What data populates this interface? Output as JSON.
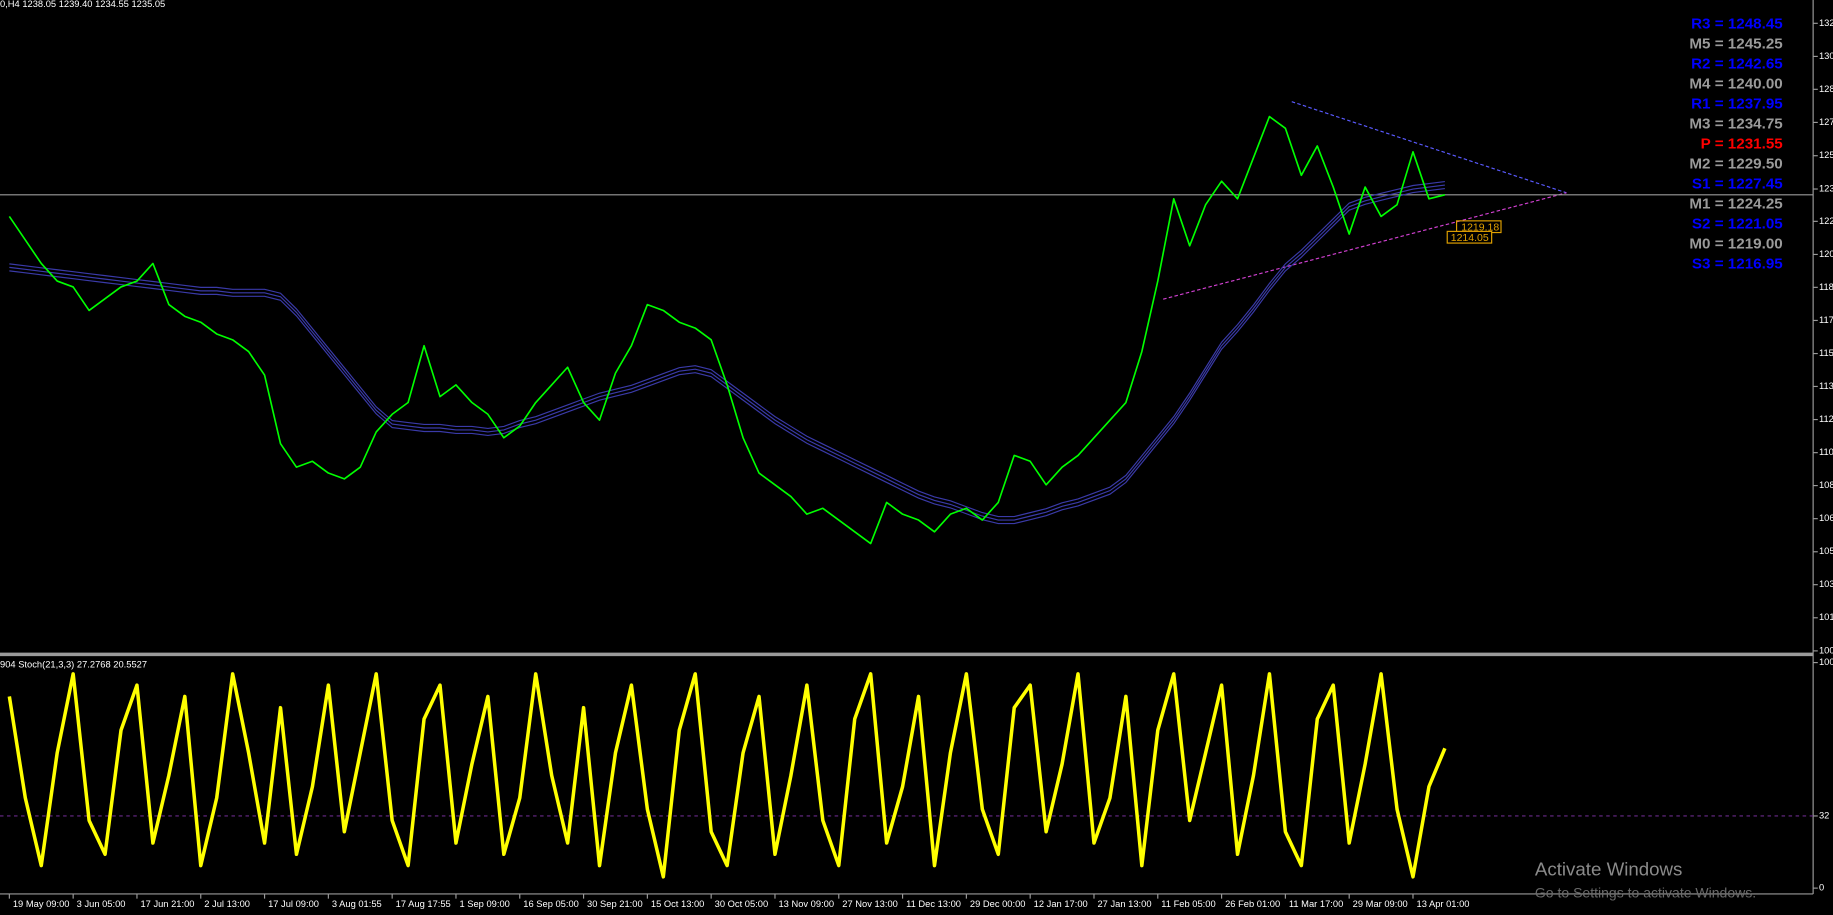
{
  "chart_data": {
    "type": "line",
    "title": "0,H4 1238.05 1239.40 1234.55 1235.05",
    "categories": [
      "19 May 09:00",
      null,
      null,
      null,
      "3 Jun 05:00",
      null,
      null,
      null,
      "17 Jun 21:00",
      null,
      null,
      null,
      "2 Jul 13:00",
      null,
      null,
      null,
      "17 Jul 09:00",
      null,
      null,
      null,
      "3 Aug 01:55",
      null,
      null,
      null,
      "17 Aug 17:55",
      null,
      null,
      null,
      "1 Sep 09:00",
      null,
      null,
      null,
      "16 Sep 05:00",
      null,
      null,
      null,
      "30 Sep 21:00",
      null,
      null,
      null,
      "15 Oct 13:00",
      null,
      null,
      null,
      "30 Oct 05:00",
      null,
      null,
      null,
      "13 Nov 09:00",
      null,
      null,
      null,
      "27 Nov 13:00",
      null,
      null,
      null,
      "11 Dec 13:00",
      null,
      null,
      null,
      "29 Dec 00:00",
      null,
      null,
      null,
      "12 Jan 17:00",
      null,
      null,
      null,
      "27 Jan 13:00",
      null,
      null,
      null,
      "11 Feb 05:00",
      null,
      null,
      null,
      "26 Feb 01:00",
      null,
      null,
      null,
      "11 Mar 17:00",
      null,
      null,
      null,
      "29 Mar 09:00",
      null,
      null,
      null,
      "13 Apr 01:00",
      null,
      null
    ],
    "values": [
      1224,
      1212,
      1200,
      1191,
      1188,
      1176,
      1182,
      1188,
      1191,
      1200,
      1179,
      1173,
      1170,
      1164,
      1161,
      1155,
      1143,
      1108,
      1096,
      1099,
      1093,
      1090,
      1096,
      1114,
      1123,
      1129,
      1158,
      1132,
      1138,
      1129,
      1123,
      1111,
      1117,
      1129,
      1138,
      1147,
      1129,
      1120,
      1144,
      1158,
      1179,
      1176,
      1170,
      1167,
      1161,
      1138,
      1111,
      1093,
      1087,
      1081,
      1072,
      1075,
      1069,
      1063,
      1057,
      1078,
      1072,
      1069,
      1063,
      1072,
      1075,
      1069,
      1078,
      1102,
      1099,
      1087,
      1096,
      1102,
      1111,
      1120,
      1129,
      1155,
      1191,
      1233,
      1209,
      1230,
      1242,
      1233,
      1254,
      1275,
      1269,
      1245,
      1260,
      1239,
      1215,
      1239,
      1224,
      1230,
      1257,
      1233,
      1235.05
    ],
    "color": "#00ff00",
    "ma": {
      "color": "#3a3aa8",
      "values": [
        1198,
        1197,
        1196,
        1195,
        1194,
        1193,
        1192,
        1191,
        1190,
        1189,
        1188,
        1187,
        1186,
        1186,
        1185,
        1185,
        1185,
        1183,
        1175,
        1165,
        1155,
        1145,
        1135,
        1125,
        1118,
        1117,
        1116,
        1116,
        1115,
        1115,
        1114,
        1115,
        1118,
        1120,
        1123,
        1126,
        1129,
        1132,
        1134,
        1136,
        1139,
        1142,
        1145,
        1146,
        1144,
        1138,
        1132,
        1126,
        1120,
        1115,
        1110,
        1106,
        1102,
        1098,
        1094,
        1090,
        1086,
        1082,
        1079,
        1077,
        1074,
        1071,
        1069,
        1069,
        1071,
        1073,
        1076,
        1078,
        1081,
        1084,
        1090,
        1100,
        1110,
        1120,
        1132,
        1145,
        1158,
        1167,
        1177,
        1188,
        1198,
        1205,
        1213,
        1221,
        1229,
        1232,
        1234,
        1236,
        1238,
        1239,
        1240
      ]
    },
    "ylim": [
      1001,
      1334.5
    ],
    "yticks": [
      {
        "value": 1322.6,
        "label": "132"
      },
      {
        "value": 1305.7,
        "label": "130"
      },
      {
        "value": 1288.9,
        "label": "128"
      },
      {
        "value": 1272,
        "label": "127"
      },
      {
        "value": 1255,
        "label": "125"
      },
      {
        "value": 1238,
        "label": "123"
      },
      {
        "value": 1221.5,
        "label": "122"
      },
      {
        "value": 1204.6,
        "label": "120"
      },
      {
        "value": 1187.8,
        "label": "118"
      },
      {
        "value": 1170.9,
        "label": "117"
      },
      {
        "value": 1154,
        "label": "115"
      },
      {
        "value": 1137.2,
        "label": "113"
      },
      {
        "value": 1120.3,
        "label": "112"
      },
      {
        "value": 1103.4,
        "label": "110"
      },
      {
        "value": 1086.6,
        "label": "108"
      },
      {
        "value": 1069.7,
        "label": "106"
      },
      {
        "value": 1052.8,
        "label": "105"
      },
      {
        "value": 1036,
        "label": "103"
      },
      {
        "value": 1019.1,
        "label": "101"
      },
      {
        "value": 1002.2,
        "label": "100"
      }
    ],
    "pivots": [
      {
        "text": "R3 = 1248.45",
        "color": "#0000ff"
      },
      {
        "text": "M5 = 1245.25",
        "color": "#9a9a9a"
      },
      {
        "text": "R2 = 1242.65",
        "color": "#0000ff"
      },
      {
        "text": "M4 = 1240.00",
        "color": "#9a9a9a"
      },
      {
        "text": "R1 = 1237.95",
        "color": "#0000ff"
      },
      {
        "text": "M3 = 1234.75",
        "color": "#9a9a9a"
      },
      {
        "text": "P  = 1231.55",
        "color": "#ff0000"
      },
      {
        "text": "M2 = 1229.50",
        "color": "#9a9a9a"
      },
      {
        "text": "S1 = 1227.45",
        "color": "#0000ff"
      },
      {
        "text": "M1 = 1224.25",
        "color": "#9a9a9a"
      },
      {
        "text": "S2 = 1221.05",
        "color": "#0000ff"
      },
      {
        "text": "M0 = 1219.00",
        "color": "#9a9a9a"
      },
      {
        "text": "S3 = 1216.95",
        "color": "#0000ff"
      }
    ],
    "price_tags": [
      "1219.18",
      "1214.05"
    ],
    "stochastic": {
      "type": "line",
      "title": "904  Stoch(21,3,3) 27.2768 20.5527",
      "color": "#ffff00",
      "ylim": [
        0,
        100
      ],
      "yticks": [
        100,
        32,
        0
      ],
      "values": [
        85,
        40,
        10,
        60,
        95,
        30,
        15,
        70,
        90,
        20,
        50,
        85,
        10,
        40,
        95,
        60,
        20,
        80,
        15,
        45,
        90,
        25,
        60,
        95,
        30,
        10,
        75,
        90,
        20,
        55,
        85,
        15,
        40,
        95,
        50,
        20,
        80,
        10,
        60,
        90,
        35,
        5,
        70,
        95,
        25,
        10,
        60,
        85,
        15,
        50,
        90,
        30,
        10,
        75,
        95,
        20,
        45,
        85,
        10,
        60,
        95,
        35,
        15,
        80,
        90,
        25,
        55,
        95,
        20,
        40,
        85,
        10,
        70,
        95,
        30,
        60,
        90,
        15,
        50,
        95,
        25,
        10,
        75,
        90,
        20,
        55,
        95,
        35,
        5,
        45,
        62
      ]
    }
  },
  "watermark": [
    "Activate Windows",
    "Go to Settings to activate Windows."
  ]
}
